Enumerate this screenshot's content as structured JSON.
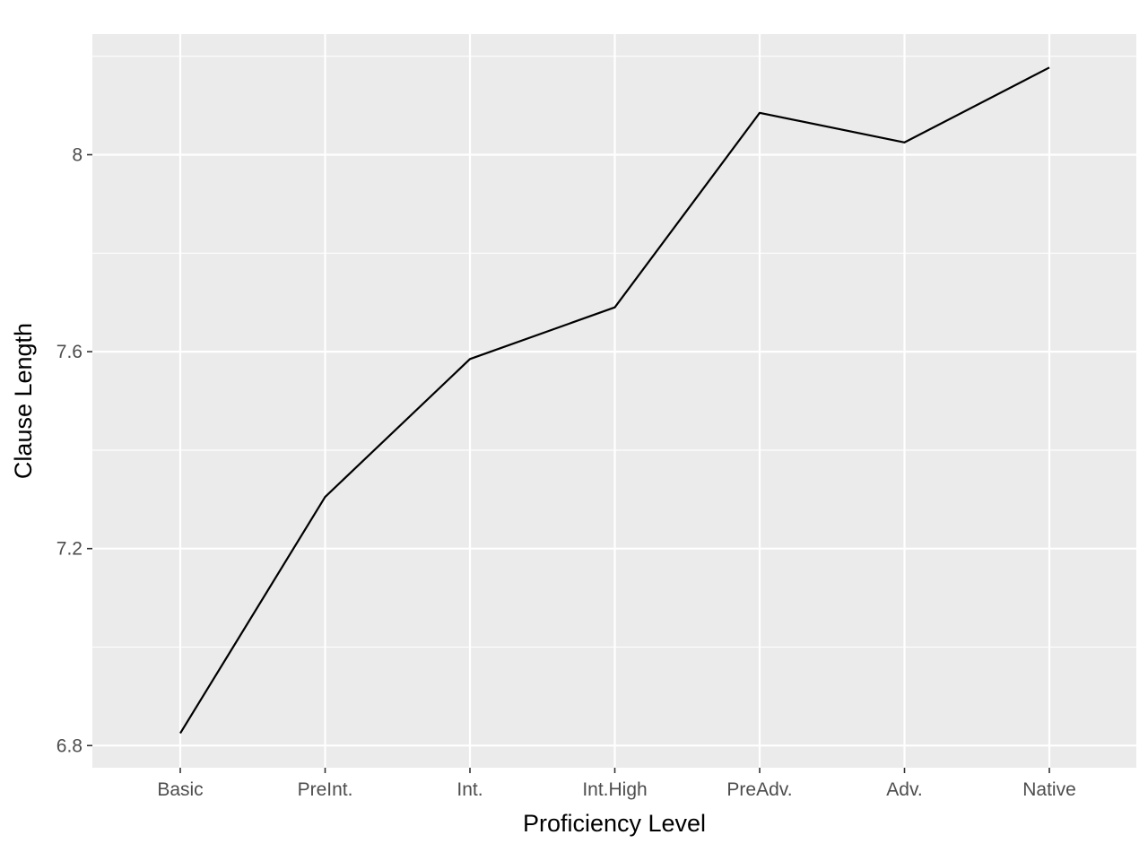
{
  "chart_data": {
    "type": "line",
    "title": "",
    "xlabel": "Proficiency Level",
    "ylabel": "Clause Length",
    "categories": [
      "Basic",
      "PreInt.",
      "Int.",
      "Int.High",
      "PreAdv.",
      "Adv.",
      "Native"
    ],
    "series": [
      {
        "values": [
          6.825,
          7.305,
          7.585,
          7.69,
          8.085,
          8.025,
          8.177
        ]
      }
    ],
    "yticks": [
      6.8,
      7.2,
      7.6,
      8.0
    ],
    "ytick_labels": [
      "6.8",
      "7.2",
      "7.6",
      "8"
    ],
    "ylim": [
      6.755,
      8.245
    ],
    "grid": true,
    "legend": "none",
    "colors": {
      "panel": "#ebebeb",
      "grid": "#ffffff",
      "line": "#000000",
      "tick_text": "#4d4d4d",
      "tick_mark": "#333333"
    }
  }
}
